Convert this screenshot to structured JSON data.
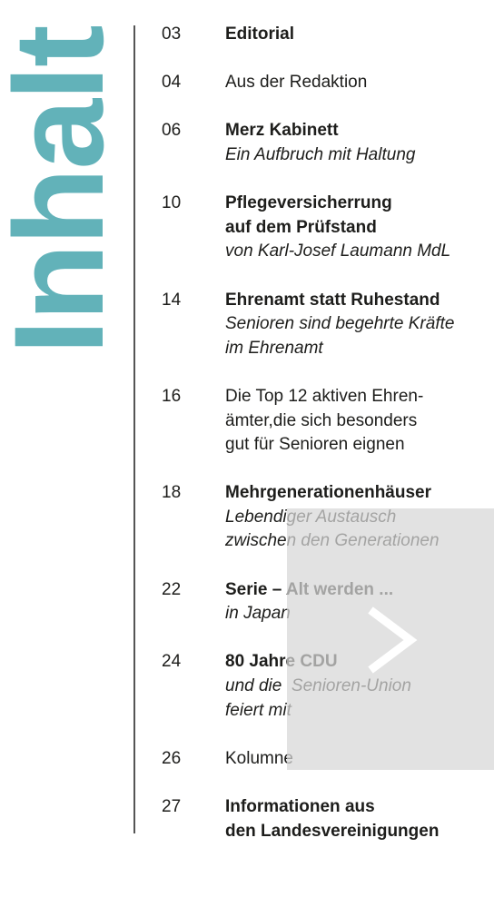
{
  "title": "Inhalt",
  "entries": [
    {
      "page": "03",
      "lines": [
        {
          "text": "Editorial",
          "style": "bold"
        }
      ]
    },
    {
      "page": "04",
      "lines": [
        {
          "text": "Aus der Redaktion",
          "style": "regular"
        }
      ]
    },
    {
      "page": "06",
      "lines": [
        {
          "text": "Merz Kabinett",
          "style": "bold"
        },
        {
          "text": "Ein Aufbruch mit Haltung",
          "style": "italic"
        }
      ]
    },
    {
      "page": "10",
      "lines": [
        {
          "text": "Pflegeversicherrung",
          "style": "bold"
        },
        {
          "text": "auf dem Prüfstand",
          "style": "bold"
        },
        {
          "text": "von Karl-Josef Laumann MdL",
          "style": "italic"
        }
      ]
    },
    {
      "page": "14",
      "lines": [
        {
          "text": "Ehrenamt statt Ruhestand",
          "style": "bold"
        },
        {
          "text": "Senioren sind begehrte Kräfte",
          "style": "italic"
        },
        {
          "text": "im Ehrenamt",
          "style": "italic"
        }
      ]
    },
    {
      "page": "16",
      "lines": [
        {
          "text": "Die Top 12 aktiven Ehren-",
          "style": "regular"
        },
        {
          "text": "ämter,die sich besonders",
          "style": "regular"
        },
        {
          "text": "gut für Senioren eignen",
          "style": "regular"
        }
      ]
    },
    {
      "page": "18",
      "lines": [
        {
          "text": "Mehrgenerationenhäuser",
          "style": "bold"
        },
        {
          "text": "Lebendiger Austausch",
          "style": "italic"
        },
        {
          "text": "zwischen den Generationen",
          "style": "italic"
        }
      ]
    },
    {
      "page": "22",
      "lines": [
        {
          "text": "Serie – Alt werden ...",
          "style": "bold"
        },
        {
          "text": "in Japan",
          "style": "italic"
        }
      ]
    },
    {
      "page": "24",
      "lines": [
        {
          "text": "80 Jahre CDU",
          "style": "bold"
        },
        {
          "text": "und die  Senioren-Union",
          "style": "italic"
        },
        {
          "text": "feiert mit",
          "style": "italic"
        }
      ]
    },
    {
      "page": "26",
      "lines": [
        {
          "text": "Kolumne",
          "style": "regular"
        }
      ]
    },
    {
      "page": "27",
      "lines": [
        {
          "text": "Informationen aus",
          "style": "bold"
        },
        {
          "text": "den Landesvereinigungen",
          "style": "bold"
        }
      ]
    }
  ]
}
